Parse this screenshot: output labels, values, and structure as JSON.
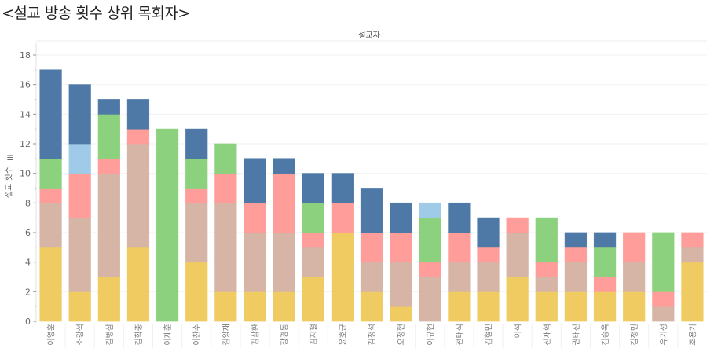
{
  "title": "<설교 방송 횟수 상위 목회자>",
  "column_header": "설교자",
  "y_axis_label": "설교 횟수",
  "y_axis_icon": "sort-icon",
  "chart_data": {
    "type": "bar",
    "stacked": true,
    "title": "<설교 방송 횟수 상위 목회자>",
    "xlabel": "설교자",
    "ylabel": "설교 횟수",
    "ylim": [
      0,
      18
    ],
    "yticks": [
      0,
      2,
      4,
      6,
      8,
      10,
      12,
      14,
      16,
      18
    ],
    "grid": true,
    "legend": "none",
    "categories": [
      "이영훈",
      "소강석",
      "김병삼",
      "김학중",
      "이재훈",
      "이찬수",
      "김양재",
      "김삼환",
      "장경동",
      "김지철",
      "윤호균",
      "김정석",
      "오정현",
      "이규현",
      "전태식",
      "김형민",
      "이석",
      "진재혁",
      "권태진",
      "김승욱",
      "김정민",
      "유기성",
      "조용기"
    ],
    "series": [
      {
        "name": "series-yellow",
        "color": "#EFCB62",
        "values": [
          5,
          2,
          3,
          5,
          0,
          4,
          2,
          2,
          2,
          3,
          6,
          2,
          1,
          0,
          2,
          2,
          3,
          2,
          2,
          2,
          2,
          0,
          4
        ]
      },
      {
        "name": "series-tan",
        "color": "#D6B4A6",
        "values": [
          3,
          5,
          7,
          7,
          0,
          4,
          6,
          4,
          4,
          2,
          0,
          2,
          3,
          3,
          2,
          2,
          3,
          1,
          2,
          0,
          2,
          1,
          1
        ]
      },
      {
        "name": "series-pink",
        "color": "#FF9D9A",
        "values": [
          1,
          3,
          1,
          1,
          0,
          1,
          2,
          2,
          4,
          1,
          2,
          2,
          2,
          1,
          2,
          1,
          1,
          1,
          1,
          1,
          2,
          1,
          1
        ]
      },
      {
        "name": "series-green",
        "color": "#8CD17D",
        "values": [
          2,
          0,
          3,
          0,
          13,
          2,
          2,
          0,
          0,
          2,
          0,
          0,
          0,
          3,
          0,
          0,
          0,
          3,
          0,
          2,
          0,
          4,
          0
        ]
      },
      {
        "name": "series-lightblue",
        "color": "#A0CBE8",
        "values": [
          0,
          2,
          0,
          0,
          0,
          0,
          0,
          0,
          0,
          0,
          0,
          0,
          0,
          1,
          0,
          0,
          0,
          0,
          0,
          0,
          0,
          0,
          0
        ]
      },
      {
        "name": "series-darkblue",
        "color": "#4E79A7",
        "values": [
          6,
          4,
          1,
          2,
          0,
          2,
          0,
          3,
          1,
          2,
          2,
          3,
          2,
          0,
          2,
          2,
          0,
          0,
          1,
          1,
          0,
          0,
          0
        ]
      }
    ],
    "totals": [
      17,
      16,
      15,
      15,
      13,
      13,
      12,
      11,
      11,
      10,
      10,
      9,
      8,
      8,
      8,
      7,
      7,
      7,
      6,
      6,
      6,
      6,
      6
    ]
  }
}
